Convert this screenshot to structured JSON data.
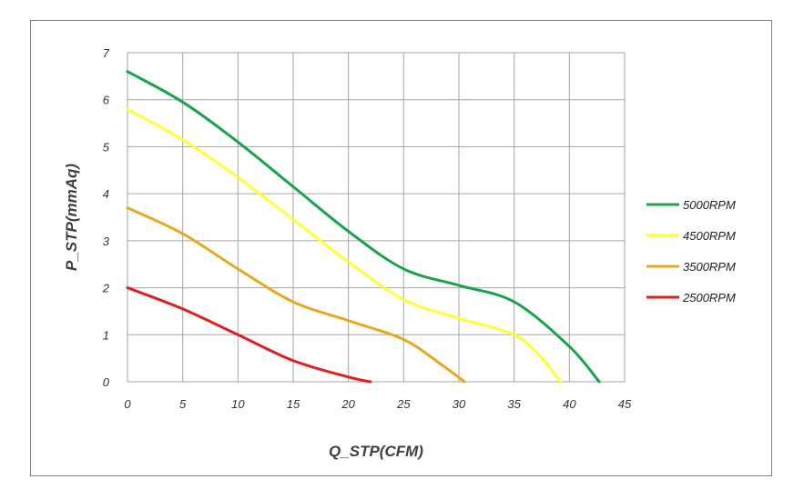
{
  "chart_data": {
    "type": "line",
    "xlabel": "Q_STP(CFM)",
    "ylabel": "P_STP(mmAq)",
    "xlim": [
      0,
      45
    ],
    "ylim": [
      0,
      7
    ],
    "xticks": [
      0,
      5,
      10,
      15,
      20,
      25,
      30,
      35,
      40,
      45
    ],
    "yticks": [
      0,
      1,
      2,
      3,
      4,
      5,
      6,
      7
    ],
    "grid": true,
    "legend_position": "right",
    "series": [
      {
        "name": "5000RPM",
        "color": "#1aa34a",
        "points": [
          [
            0,
            6.6
          ],
          [
            5,
            5.95
          ],
          [
            10,
            5.1
          ],
          [
            15,
            4.15
          ],
          [
            20,
            3.2
          ],
          [
            25,
            2.4
          ],
          [
            30,
            2.05
          ],
          [
            35,
            1.7
          ],
          [
            40,
            0.75
          ],
          [
            42.7,
            0
          ]
        ]
      },
      {
        "name": "4500RPM",
        "color": "#ffff33",
        "points": [
          [
            0,
            5.8
          ],
          [
            5,
            5.15
          ],
          [
            10,
            4.35
          ],
          [
            15,
            3.45
          ],
          [
            20,
            2.55
          ],
          [
            25,
            1.75
          ],
          [
            30,
            1.35
          ],
          [
            35,
            1.0
          ],
          [
            37.5,
            0.5
          ],
          [
            39.2,
            0
          ]
        ]
      },
      {
        "name": "3500RPM",
        "color": "#e6a820",
        "points": [
          [
            0,
            3.7
          ],
          [
            5,
            3.15
          ],
          [
            10,
            2.4
          ],
          [
            15,
            1.7
          ],
          [
            20,
            1.3
          ],
          [
            25,
            0.9
          ],
          [
            28.5,
            0.35
          ],
          [
            30.5,
            0
          ]
        ]
      },
      {
        "name": "2500RPM",
        "color": "#e02020",
        "points": [
          [
            0,
            2.0
          ],
          [
            5,
            1.55
          ],
          [
            10,
            1.0
          ],
          [
            15,
            0.45
          ],
          [
            20,
            0.1
          ],
          [
            22,
            0
          ]
        ]
      }
    ]
  }
}
